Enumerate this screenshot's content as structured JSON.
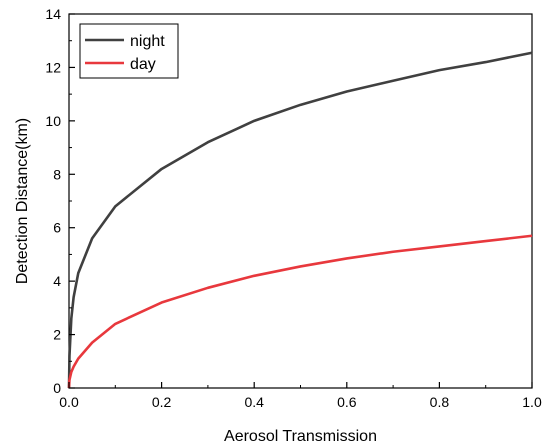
{
  "chart_data": {
    "type": "line",
    "xlabel": "Aerosol Transmission",
    "ylabel": "Detection Distance(km)",
    "xlim": [
      0,
      1.0
    ],
    "ylim": [
      0,
      14
    ],
    "x_ticks": [
      "0.0",
      "0.2",
      "0.4",
      "0.6",
      "0.8",
      "1.0"
    ],
    "y_ticks": [
      "0",
      "2",
      "4",
      "6",
      "8",
      "10",
      "12",
      "14"
    ],
    "grid": false,
    "legend_position": "top-left",
    "series": [
      {
        "name": "night",
        "color": "#404040",
        "x": [
          0.0,
          0.001,
          0.005,
          0.01,
          0.02,
          0.05,
          0.1,
          0.2,
          0.3,
          0.4,
          0.5,
          0.6,
          0.7,
          0.8,
          0.9,
          1.0
        ],
        "y": [
          0.0,
          1.2,
          2.6,
          3.4,
          4.3,
          5.6,
          6.8,
          8.2,
          9.2,
          10.0,
          10.6,
          11.1,
          11.5,
          11.9,
          12.2,
          12.55
        ]
      },
      {
        "name": "day",
        "color": "#e8383d",
        "x": [
          0.0,
          0.001,
          0.005,
          0.01,
          0.02,
          0.05,
          0.1,
          0.2,
          0.3,
          0.4,
          0.5,
          0.6,
          0.7,
          0.8,
          0.9,
          1.0
        ],
        "y": [
          0.0,
          0.3,
          0.6,
          0.8,
          1.1,
          1.7,
          2.4,
          3.2,
          3.75,
          4.2,
          4.55,
          4.85,
          5.1,
          5.3,
          5.5,
          5.7
        ]
      }
    ]
  }
}
